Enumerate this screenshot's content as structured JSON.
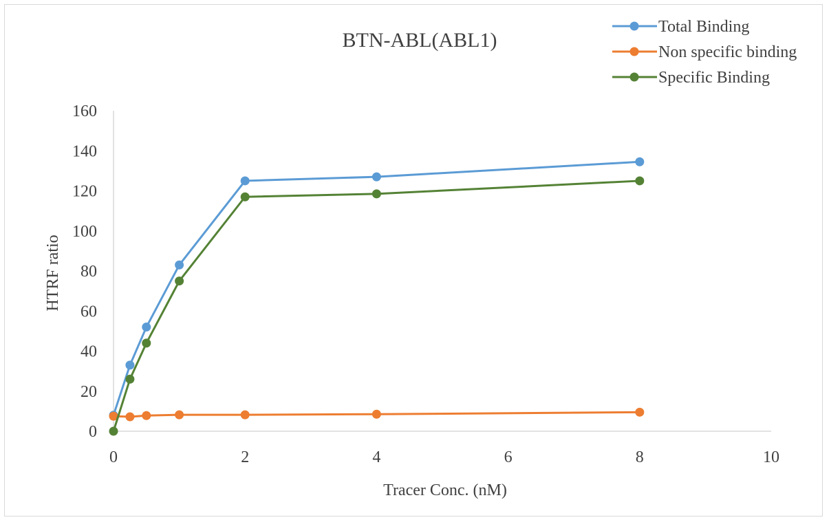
{
  "chart_data": {
    "type": "line",
    "title": "BTN-ABL(ABL1)",
    "xlabel": "Tracer Conc. (nM)",
    "ylabel": "HTRF ratio",
    "xlim": [
      0,
      10
    ],
    "ylim": [
      0,
      160
    ],
    "x_ticks": [
      "0",
      "2",
      "4",
      "6",
      "8",
      "10"
    ],
    "y_ticks": [
      "0",
      "20",
      "40",
      "60",
      "80",
      "100",
      "120",
      "140",
      "160"
    ],
    "x_values": [
      0,
      0.25,
      0.5,
      1,
      2,
      4,
      8
    ],
    "grid": false,
    "legend_position": "top-right",
    "series": [
      {
        "name": "Total Binding",
        "color": "#5b9bd5",
        "values": [
          8,
          33,
          52,
          83,
          125,
          127,
          134.5
        ]
      },
      {
        "name": "Non specific binding",
        "color": "#ed7d31",
        "values": [
          7.5,
          7.2,
          7.8,
          8.2,
          8.2,
          8.5,
          9.5
        ]
      },
      {
        "name": "Specific Binding",
        "color": "#548235",
        "values": [
          0,
          26,
          44,
          75,
          117,
          118.5,
          125
        ]
      }
    ]
  }
}
